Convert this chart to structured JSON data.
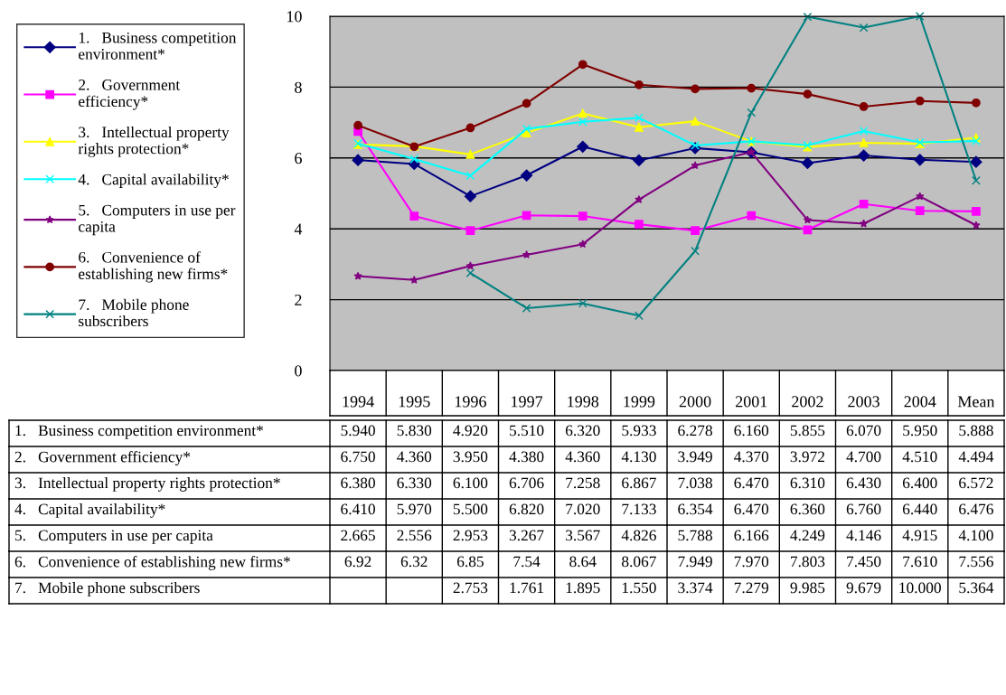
{
  "chart_data": {
    "type": "line",
    "categories": [
      "1994",
      "1995",
      "1996",
      "1997",
      "1998",
      "1999",
      "2000",
      "2001",
      "2002",
      "2003",
      "2004",
      "Mean"
    ],
    "ylim": [
      0,
      10
    ],
    "yticks": [
      0,
      2,
      4,
      6,
      8,
      10
    ],
    "grid": "y",
    "legend": "left",
    "data_labels": true,
    "series": [
      {
        "name": "1.   Business competition\nenvironment*",
        "color": "#000080",
        "marker": "diamond",
        "values": [
          5.94,
          5.83,
          4.92,
          5.51,
          6.32,
          5.933,
          6.278,
          6.16,
          5.855,
          6.07,
          5.95,
          5.888
        ],
        "value_labels": [
          "5.940",
          "5.830",
          "4.920",
          "5.510",
          "6.320",
          "5.933",
          "6.278",
          "6.160",
          "5.855",
          "6.070",
          "5.950",
          "5.888"
        ]
      },
      {
        "name": "2.   Government\nefficiency*",
        "color": "#ff00ff",
        "marker": "square",
        "values": [
          6.75,
          4.36,
          3.95,
          4.38,
          4.36,
          4.13,
          3.949,
          4.37,
          3.972,
          4.7,
          4.51,
          4.494
        ],
        "value_labels": [
          "6.750",
          "4.360",
          "3.950",
          "4.380",
          "4.360",
          "4.130",
          "3.949",
          "4.370",
          "3.972",
          "4.700",
          "4.510",
          "4.494"
        ]
      },
      {
        "name": "3.   Intellectual property\nrights protection*",
        "color": "#ffff00",
        "marker": "triangle",
        "values": [
          6.38,
          6.33,
          6.1,
          6.706,
          7.258,
          6.867,
          7.038,
          6.47,
          6.31,
          6.43,
          6.4,
          6.572
        ],
        "value_labels": [
          "6.380",
          "6.330",
          "6.100",
          "6.706",
          "7.258",
          "6.867",
          "7.038",
          "6.470",
          "6.310",
          "6.430",
          "6.400",
          "6.572"
        ]
      },
      {
        "name": "4.   Capital availability*",
        "color": "#00ffff",
        "marker": "cross",
        "values": [
          6.41,
          5.97,
          5.5,
          6.82,
          7.02,
          7.133,
          6.354,
          6.47,
          6.36,
          6.76,
          6.44,
          6.476
        ],
        "value_labels": [
          "6.410",
          "5.970",
          "5.500",
          "6.820",
          "7.020",
          "7.133",
          "6.354",
          "6.470",
          "6.360",
          "6.760",
          "6.440",
          "6.476"
        ]
      },
      {
        "name": "5.   Computers in use per\ncapita",
        "color": "#800080",
        "marker": "star",
        "values": [
          2.665,
          2.556,
          2.953,
          3.267,
          3.567,
          4.826,
          5.788,
          6.166,
          4.249,
          4.146,
          4.915,
          4.1
        ],
        "value_labels": [
          "2.665",
          "2.556",
          "2.953",
          "3.267",
          "3.567",
          "4.826",
          "5.788",
          "6.166",
          "4.249",
          "4.146",
          "4.915",
          "4.100"
        ]
      },
      {
        "name": "6.   Convenience of\nestablishing new firms*",
        "color": "#800000",
        "marker": "circle",
        "values": [
          6.92,
          6.32,
          6.85,
          7.54,
          8.64,
          8.067,
          7.949,
          7.97,
          7.803,
          7.45,
          7.61,
          7.556
        ],
        "value_labels": [
          "6.92",
          "6.32",
          "6.85",
          "7.54",
          "8.64",
          "8.067",
          "7.949",
          "7.970",
          "7.803",
          "7.450",
          "7.610",
          "7.556"
        ]
      },
      {
        "name": "7.   Mobile phone\nsubscribers",
        "color": "#008080",
        "marker": "cross",
        "values": [
          null,
          null,
          2.753,
          1.761,
          1.895,
          1.55,
          3.374,
          7.279,
          9.985,
          9.679,
          10.0,
          5.364
        ],
        "value_labels": [
          null,
          null,
          "2.753",
          "1.761",
          "1.895",
          "1.550",
          "3.374",
          "7.279",
          "9.985",
          "9.679",
          "10.000",
          "5.364"
        ]
      }
    ]
  }
}
